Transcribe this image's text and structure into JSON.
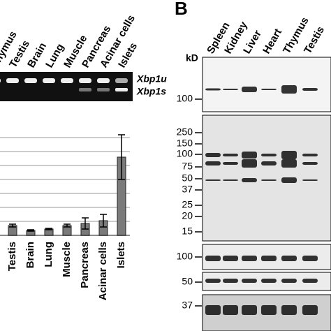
{
  "panel_a": {
    "lanes": [
      "Thymus",
      "Testis",
      "Brain",
      "Lung",
      "Muscle",
      "Pancreas",
      "Acinar cells",
      "Islets"
    ],
    "gel_labels": [
      "Xbp1u",
      "Xbp1s"
    ]
  },
  "chart_data": {
    "type": "bar",
    "categories": [
      "Testis",
      "Brain",
      "Lung",
      "Muscle",
      "Pancreas",
      "Acinar cells",
      "Islets"
    ],
    "values": [
      0.7,
      0.35,
      0.45,
      0.7,
      0.85,
      1.05,
      5.6
    ],
    "errors": [
      0.1,
      0.05,
      0.05,
      0.1,
      0.4,
      0.45,
      1.6
    ],
    "color": "#7a7a7a",
    "ylim": [
      0,
      7.5
    ],
    "yticks": [
      0,
      1,
      2,
      3,
      4,
      5,
      6,
      7
    ],
    "grid": true
  },
  "panel_b": {
    "label": "B",
    "lanes": [
      "Spleen",
      "Kidney",
      "Liver",
      "Heart",
      "Thymus",
      "Testis"
    ],
    "unit": "kD",
    "blots": [
      {
        "markers": [
          100
        ]
      },
      {
        "markers": [
          250,
          150,
          100,
          75,
          50,
          37,
          25,
          20,
          15
        ]
      },
      {
        "markers": [
          100
        ]
      },
      {
        "markers": [
          50
        ]
      },
      {
        "markers": [
          37
        ]
      }
    ]
  }
}
